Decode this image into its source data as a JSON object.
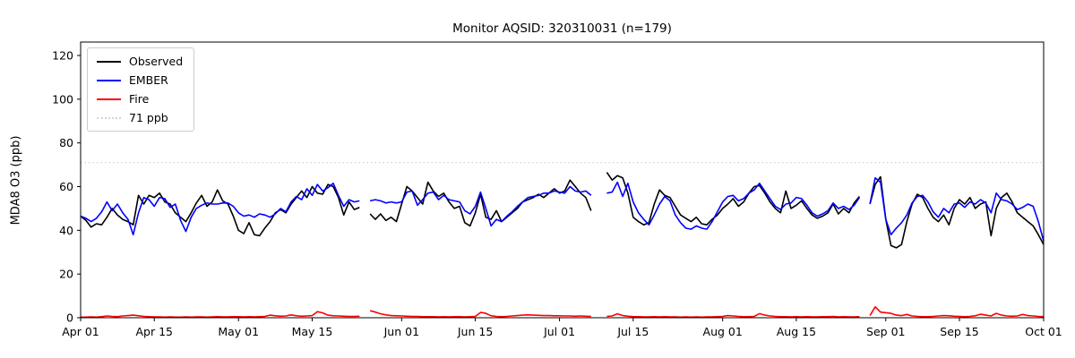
{
  "chart_data": {
    "type": "line",
    "title": "Monitor AQSID: 320310031 (n=179)",
    "xlabel": "",
    "ylabel": "MDA8 O3 (ppb)",
    "x_unit": "daily values, day index 0 = Apr 01, day index 183 = Oct 01",
    "x_range": [
      "Apr 01",
      "Oct 01"
    ],
    "ylim": [
      0,
      126
    ],
    "grid": false,
    "legend_position": "upper left",
    "threshold": {
      "value": 71,
      "label": "71 ppb",
      "color": "#d3d3d3",
      "style": "dotted"
    },
    "series": [
      {
        "name": "Observed",
        "color": "#000000",
        "style": "solid",
        "values": [
          46.5,
          44.5,
          41.5,
          43,
          42.5,
          46,
          50,
          47,
          45,
          44,
          42.5,
          56,
          52,
          56,
          55,
          57,
          53,
          52,
          48,
          46,
          44,
          48,
          52.5,
          56,
          51,
          53,
          58.5,
          53.5,
          52,
          46.5,
          40,
          38.5,
          43.5,
          38,
          37.5,
          41,
          44,
          48,
          49.5,
          48,
          52,
          55,
          58,
          55,
          60,
          57,
          56.5,
          61,
          60,
          55,
          47,
          53,
          49.5,
          50.5,
          null,
          47.5,
          45,
          47.5,
          44.5,
          46,
          44,
          52,
          60,
          58,
          55,
          52,
          62,
          58,
          55.5,
          57,
          53,
          50,
          51,
          43.5,
          42,
          48,
          56.5,
          46,
          45,
          49,
          44,
          46,
          48,
          50,
          53,
          54,
          55,
          56.5,
          55,
          57,
          59,
          57,
          58,
          63,
          60,
          57,
          55,
          49,
          null,
          null,
          66.5,
          63,
          65,
          64,
          57,
          46,
          44,
          42.5,
          43.5,
          52,
          58.5,
          56,
          55,
          51,
          47,
          45.5,
          44,
          46,
          43,
          42.5,
          45,
          47,
          50,
          52,
          54.5,
          51,
          53,
          57,
          60,
          60.5,
          57,
          53,
          50,
          48,
          58,
          50,
          51.5,
          53.5,
          50,
          47,
          45.5,
          46.5,
          48,
          52,
          47.5,
          50,
          48,
          52.5,
          55.5,
          null,
          52,
          61,
          64.5,
          45,
          33,
          32,
          33.5,
          44,
          52,
          56.5,
          55,
          50,
          46,
          44,
          47,
          42.5,
          50,
          54,
          52,
          55,
          50,
          52,
          53,
          37.5,
          50,
          55,
          57,
          53,
          48,
          46,
          44,
          42,
          38,
          33.5
        ]
      },
      {
        "name": "EMBER",
        "color": "#0000ff",
        "style": "solid",
        "values": [
          46.5,
          45.5,
          44,
          45.5,
          48.5,
          53,
          49,
          52,
          48,
          45,
          38,
          48,
          55,
          54,
          51,
          55,
          54.5,
          50.5,
          52,
          44.5,
          39.5,
          46,
          50,
          51.5,
          52.5,
          52,
          52,
          52.5,
          52.5,
          51,
          48,
          46.5,
          47,
          46,
          47.5,
          47,
          46,
          47.5,
          50,
          48.5,
          53,
          55.5,
          54,
          59,
          56,
          61,
          58,
          59.5,
          61.5,
          56,
          51,
          54,
          53,
          53.5,
          null,
          53.5,
          54,
          53.5,
          52.5,
          53,
          52.5,
          53,
          57.5,
          58,
          51.5,
          54,
          57,
          57.5,
          54,
          56,
          54,
          53.5,
          53,
          49,
          47.5,
          51,
          57.5,
          50,
          42,
          45,
          44,
          46.5,
          48.5,
          51,
          53,
          55,
          55.5,
          56,
          57,
          57,
          58,
          57.5,
          57,
          60,
          58,
          57.5,
          58,
          56,
          null,
          null,
          57,
          57.5,
          62,
          55.5,
          61.5,
          53,
          48,
          45,
          42.5,
          47,
          52,
          55.5,
          53.5,
          47,
          43.5,
          41,
          40.5,
          42,
          41,
          40.5,
          44,
          48.5,
          53,
          55.5,
          56,
          53.5,
          54.5,
          57,
          58.5,
          61.5,
          58,
          54.5,
          51,
          49.5,
          52,
          52.5,
          55,
          54.5,
          51.5,
          48,
          46.5,
          47.5,
          49,
          52.5,
          50,
          51,
          49.5,
          51.5,
          55,
          null,
          52,
          64,
          62,
          45,
          38,
          41,
          43.5,
          47,
          52.5,
          55.5,
          56,
          53,
          48.5,
          46,
          50,
          48,
          52,
          52.5,
          50.5,
          53,
          52,
          54,
          52.5,
          48,
          57,
          54,
          53.5,
          52,
          49.5,
          50.5,
          52,
          51,
          44,
          35
        ]
      },
      {
        "name": "Fire",
        "color": "#ff0000",
        "style": "solid",
        "values": [
          0.3,
          0.3,
          0.4,
          0.3,
          0.5,
          0.8,
          0.6,
          0.5,
          0.8,
          1.0,
          1.2,
          0.9,
          0.6,
          0.5,
          0.4,
          0.4,
          0.3,
          0.4,
          0.3,
          0.3,
          0.4,
          0.3,
          0.4,
          0.4,
          0.3,
          0.4,
          0.5,
          0.4,
          0.4,
          0.5,
          0.5,
          0.4,
          0.5,
          0.4,
          0.5,
          0.6,
          1.2,
          0.9,
          0.7,
          0.8,
          1.3,
          0.9,
          0.7,
          0.8,
          1.0,
          2.8,
          2.2,
          1.2,
          0.9,
          0.8,
          0.7,
          0.6,
          0.6,
          0.7,
          null,
          3.2,
          2.6,
          1.8,
          1.3,
          1.0,
          0.9,
          0.8,
          0.7,
          0.6,
          0.6,
          0.5,
          0.5,
          0.5,
          0.4,
          0.5,
          0.4,
          0.5,
          0.5,
          0.4,
          0.5,
          0.6,
          2.4,
          2.0,
          0.9,
          0.6,
          0.5,
          0.6,
          0.8,
          1.0,
          1.2,
          1.3,
          1.2,
          1.1,
          1.0,
          1.0,
          0.9,
          0.9,
          0.8,
          0.8,
          0.7,
          0.8,
          0.7,
          0.6,
          null,
          null,
          0.6,
          0.8,
          1.8,
          1.0,
          0.7,
          0.5,
          0.5,
          0.4,
          0.4,
          0.5,
          0.4,
          0.5,
          0.4,
          0.4,
          0.3,
          0.4,
          0.3,
          0.4,
          0.3,
          0.4,
          0.4,
          0.5,
          0.6,
          1.0,
          0.8,
          0.6,
          0.5,
          0.5,
          0.6,
          1.9,
          1.2,
          0.8,
          0.6,
          0.5,
          0.5,
          0.4,
          0.5,
          0.4,
          0.5,
          0.4,
          0.4,
          0.5,
          0.5,
          0.6,
          0.4,
          0.5,
          0.4,
          0.4,
          0.5,
          null,
          1.0,
          5.0,
          2.6,
          2.3,
          2.0,
          1.2,
          1.0,
          1.5,
          0.8,
          0.6,
          0.5,
          0.5,
          0.6,
          0.8,
          1.0,
          0.9,
          0.7,
          0.6,
          0.5,
          0.6,
          0.9,
          1.6,
          1.2,
          0.8,
          2.0,
          1.2,
          0.8,
          0.7,
          0.8,
          1.5,
          1.0,
          0.8,
          0.6,
          0.5
        ]
      }
    ]
  },
  "axes": {
    "ylabel": "MDA8 O3 (ppb)",
    "y_ticks": [
      0,
      20,
      40,
      60,
      80,
      100,
      120
    ],
    "x_tick_days": [
      0,
      14,
      30,
      44,
      61,
      75,
      91,
      105,
      122,
      136,
      153,
      167,
      183
    ],
    "x_tick_labels": [
      "Apr 01",
      "Apr 15",
      "May 01",
      "May 15",
      "Jun 01",
      "Jun 15",
      "Jul 01",
      "Jul 15",
      "Aug 01",
      "Aug 15",
      "Sep 01",
      "Sep 15",
      "Oct 01"
    ]
  },
  "legend": {
    "items": [
      {
        "label": "Observed",
        "color": "#000000",
        "style": "solid"
      },
      {
        "label": "EMBER",
        "color": "#0000ff",
        "style": "solid"
      },
      {
        "label": "Fire",
        "color": "#ff0000",
        "style": "solid"
      },
      {
        "label": "71 ppb",
        "color": "#d3d3d3",
        "style": "dotted"
      }
    ]
  }
}
